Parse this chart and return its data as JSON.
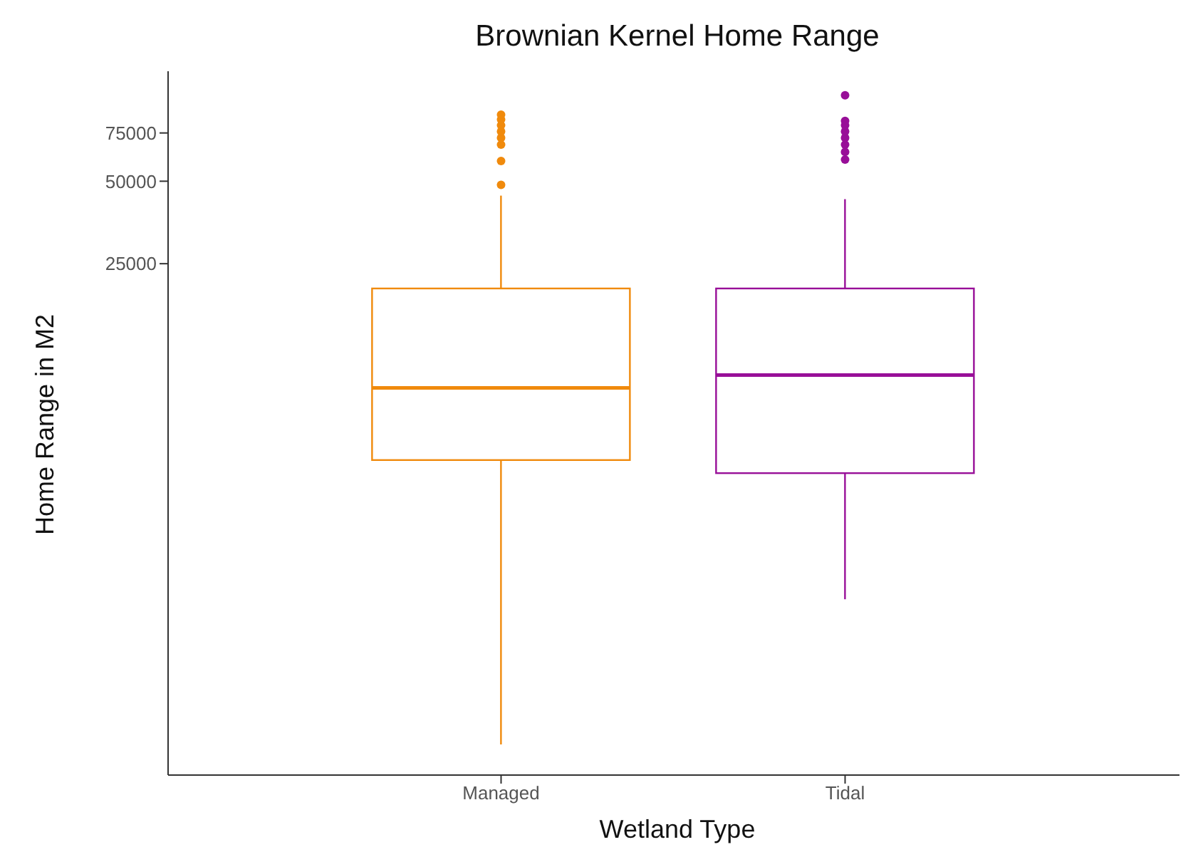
{
  "chart_data": {
    "type": "box",
    "title": "Brownian Kernel Home Range",
    "xlabel": "Wetland Type",
    "ylabel": "Home Range in M2",
    "categories": [
      "Managed",
      "Tidal"
    ],
    "colors": [
      "#f08a0c",
      "#980f98"
    ],
    "boxes": [
      {
        "low": 440,
        "q1": 4800,
        "median": 8800,
        "q3": 20300,
        "high": 44300,
        "outliers": [
          48500,
          59300,
          68000,
          72000,
          76000,
          80000,
          84000,
          87500
        ]
      },
      {
        "low": 1490,
        "q1": 4300,
        "median": 9800,
        "q3": 20300,
        "high": 43000,
        "outliers": [
          60000,
          64000,
          68000,
          72000,
          76000,
          80000,
          83000,
          103000
        ]
      }
    ],
    "log": true,
    "ylim": [
      340,
      126000
    ],
    "yticks": [
      25000,
      50000,
      75000
    ],
    "grid": false
  }
}
